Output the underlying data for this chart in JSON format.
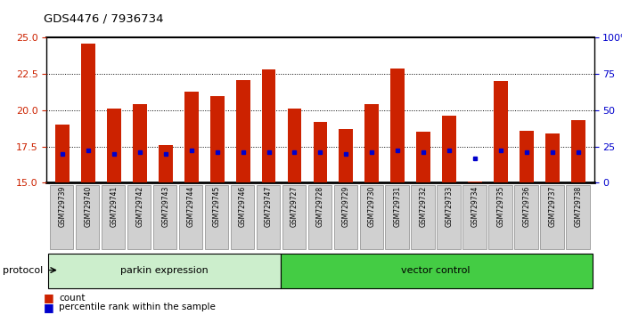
{
  "title": "GDS4476 / 7936734",
  "samples": [
    "GSM729739",
    "GSM729740",
    "GSM729741",
    "GSM729742",
    "GSM729743",
    "GSM729744",
    "GSM729745",
    "GSM729746",
    "GSM729747",
    "GSM729727",
    "GSM729728",
    "GSM729729",
    "GSM729730",
    "GSM729731",
    "GSM729732",
    "GSM729733",
    "GSM729734",
    "GSM729735",
    "GSM729736",
    "GSM729737",
    "GSM729738"
  ],
  "count_values": [
    19.0,
    24.6,
    20.1,
    20.4,
    17.6,
    21.3,
    21.0,
    22.1,
    22.8,
    20.1,
    19.2,
    18.7,
    20.4,
    22.9,
    18.5,
    19.6,
    15.1,
    22.0,
    18.6,
    18.4,
    19.3
  ],
  "percentile_values": [
    17.0,
    17.2,
    17.0,
    17.1,
    17.0,
    17.2,
    17.1,
    17.1,
    17.1,
    17.1,
    17.1,
    17.0,
    17.1,
    17.2,
    17.1,
    17.2,
    16.7,
    17.2,
    17.1,
    17.1,
    17.1
  ],
  "group1_count": 9,
  "group1_label": "parkin expression",
  "group2_label": "vector control",
  "group1_color": "#cceecc",
  "group2_color": "#44cc44",
  "ymin": 15,
  "ymax": 25,
  "yticks_left": [
    15,
    17.5,
    20,
    22.5,
    25
  ],
  "yticks_right": [
    0,
    25,
    50,
    75,
    100
  ],
  "bar_color": "#cc2200",
  "blue_color": "#0000cc",
  "protocol_label": "protocol",
  "legend_count_label": "count",
  "legend_pct_label": "percentile rank within the sample"
}
